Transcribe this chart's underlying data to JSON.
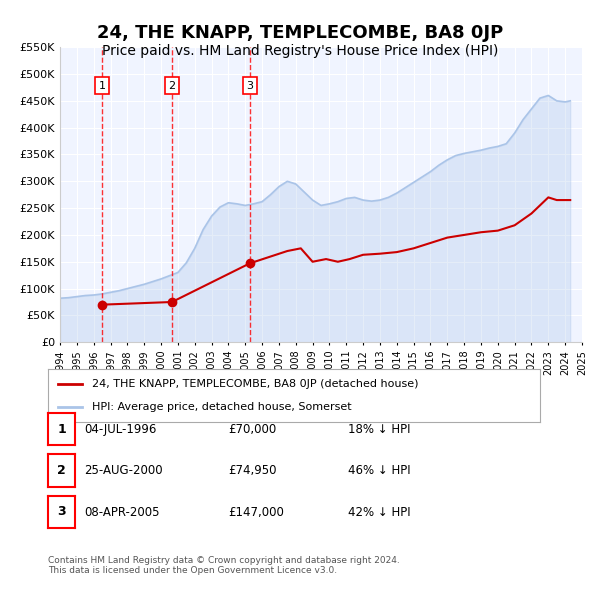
{
  "title": "24, THE KNAPP, TEMPLECOMBE, BA8 0JP",
  "subtitle": "Price paid vs. HM Land Registry's House Price Index (HPI)",
  "title_fontsize": 13,
  "subtitle_fontsize": 10,
  "ylabel": "",
  "background_color": "#f0f4ff",
  "plot_bg_color": "#f0f4ff",
  "ylim": [
    0,
    550000
  ],
  "yticks": [
    0,
    50000,
    100000,
    150000,
    200000,
    250000,
    300000,
    350000,
    400000,
    450000,
    500000,
    550000
  ],
  "ytick_labels": [
    "£0",
    "£50K",
    "£100K",
    "£150K",
    "£200K",
    "£250K",
    "£300K",
    "£350K",
    "£400K",
    "£450K",
    "£500K",
    "£550K"
  ],
  "hpi_color": "#aac4e8",
  "price_color": "#cc0000",
  "marker_color": "#cc0000",
  "grid_color": "#ffffff",
  "sale_dates": [
    1996.5,
    2000.65,
    2005.27
  ],
  "sale_prices": [
    70000,
    74950,
    147000
  ],
  "sale_labels": [
    "1",
    "2",
    "3"
  ],
  "legend_label_price": "24, THE KNAPP, TEMPLECOMBE, BA8 0JP (detached house)",
  "legend_label_hpi": "HPI: Average price, detached house, Somerset",
  "table_rows": [
    [
      "1",
      "04-JUL-1996",
      "£70,000",
      "18% ↓ HPI"
    ],
    [
      "2",
      "25-AUG-2000",
      "£74,950",
      "46% ↓ HPI"
    ],
    [
      "3",
      "08-APR-2005",
      "£147,000",
      "42% ↓ HPI"
    ]
  ],
  "footer": "Contains HM Land Registry data © Crown copyright and database right 2024.\nThis data is licensed under the Open Government Licence v3.0.",
  "hpi_x": [
    1994,
    1994.5,
    1995,
    1995.5,
    1996,
    1996.5,
    1997,
    1997.5,
    1998,
    1998.5,
    1999,
    1999.5,
    2000,
    2000.5,
    2001,
    2001.5,
    2002,
    2002.5,
    2003,
    2003.5,
    2004,
    2004.5,
    2005,
    2005.5,
    2006,
    2006.5,
    2007,
    2007.5,
    2008,
    2008.5,
    2009,
    2009.5,
    2010,
    2010.5,
    2011,
    2011.5,
    2012,
    2012.5,
    2013,
    2013.5,
    2014,
    2014.5,
    2015,
    2015.5,
    2016,
    2016.5,
    2017,
    2017.5,
    2018,
    2018.5,
    2019,
    2019.5,
    2020,
    2020.5,
    2021,
    2021.5,
    2022,
    2022.5,
    2023,
    2023.5,
    2024,
    2024.3
  ],
  "hpi_y": [
    82000,
    83000,
    85000,
    87000,
    88000,
    90000,
    93000,
    96000,
    100000,
    104000,
    108000,
    113000,
    118000,
    124000,
    130000,
    148000,
    175000,
    210000,
    235000,
    252000,
    260000,
    258000,
    255000,
    258000,
    262000,
    275000,
    290000,
    300000,
    295000,
    280000,
    265000,
    255000,
    258000,
    262000,
    268000,
    270000,
    265000,
    263000,
    265000,
    270000,
    278000,
    288000,
    298000,
    308000,
    318000,
    330000,
    340000,
    348000,
    352000,
    355000,
    358000,
    362000,
    365000,
    370000,
    390000,
    415000,
    435000,
    455000,
    460000,
    450000,
    448000,
    450000
  ],
  "price_x": [
    1994.0,
    1996.5,
    2000.65,
    2005.27,
    2007.5,
    2008.3,
    2009.0,
    2009.8,
    2010.5,
    2011.2,
    2012.0,
    2013.0,
    2014.0,
    2015.0,
    2016.0,
    2017.0,
    2018.0,
    2019.0,
    2020.0,
    2021.0,
    2022.0,
    2022.5,
    2023.0,
    2023.5,
    2024.3
  ],
  "price_y": [
    null,
    70000,
    74950,
    147000,
    170000,
    175000,
    150000,
    155000,
    150000,
    155000,
    163000,
    165000,
    168000,
    175000,
    185000,
    195000,
    200000,
    205000,
    208000,
    218000,
    240000,
    255000,
    270000,
    265000,
    265000
  ]
}
